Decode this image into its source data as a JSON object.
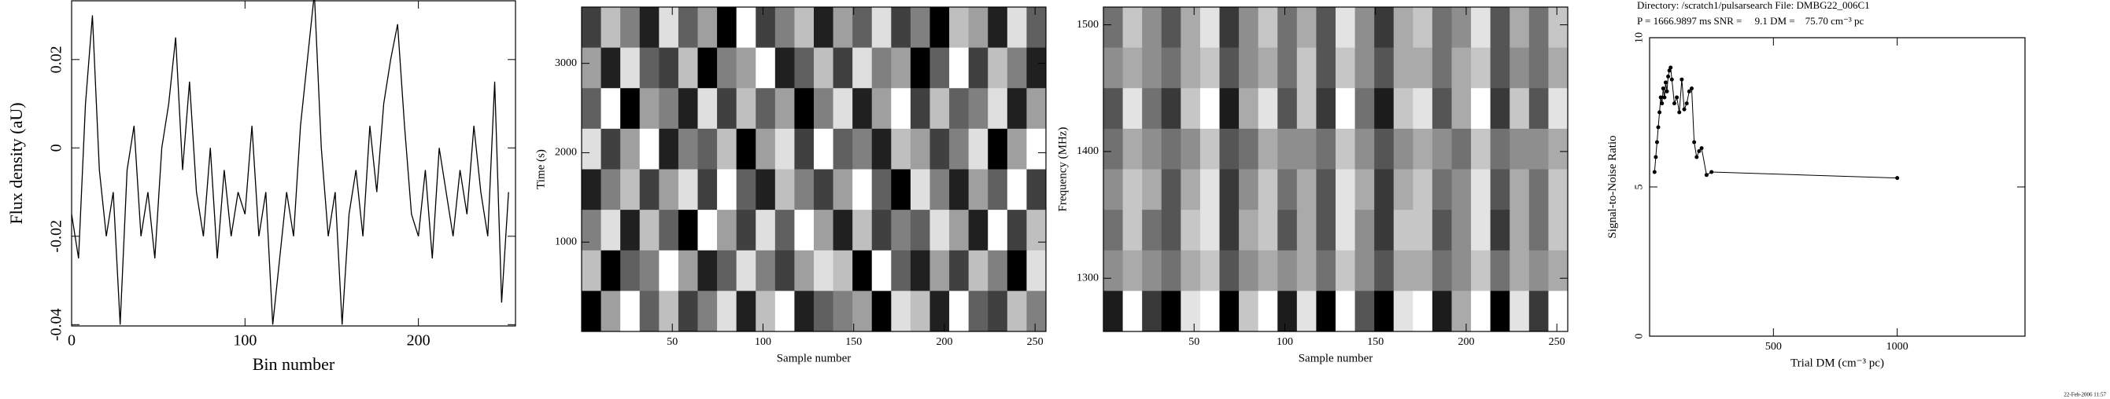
{
  "chart_data": [
    {
      "type": "line",
      "xlabel": "Bin number",
      "ylabel": "Flux density (aU)",
      "color": "#000000",
      "xlim": [
        0,
        256
      ],
      "xticks": [
        0,
        100,
        200
      ],
      "ylim": [
        -0.0403,
        0.0333
      ],
      "yticks": [
        -0.04,
        -0.02,
        0,
        0.02
      ],
      "rotate_yticks": true,
      "x": [
        0,
        4,
        8,
        12,
        16,
        20,
        24,
        28,
        32,
        36,
        40,
        44,
        48,
        52,
        56,
        60,
        64,
        68,
        72,
        76,
        80,
        84,
        88,
        92,
        96,
        100,
        104,
        108,
        112,
        116,
        120,
        124,
        128,
        132,
        136,
        140,
        144,
        148,
        152,
        156,
        160,
        164,
        168,
        172,
        176,
        180,
        184,
        188,
        192,
        196,
        200,
        204,
        208,
        212,
        216,
        220,
        224,
        228,
        232,
        236,
        240,
        244,
        248,
        252
      ],
      "values": [
        -0.015,
        -0.025,
        0.01,
        0.03,
        -0.005,
        -0.02,
        -0.01,
        -0.04,
        -0.005,
        0.005,
        -0.02,
        -0.01,
        -0.025,
        0.0,
        0.01,
        0.025,
        -0.005,
        0.015,
        -0.01,
        -0.02,
        0.0,
        -0.025,
        -0.005,
        -0.02,
        -0.01,
        -0.015,
        0.005,
        -0.02,
        -0.01,
        -0.04,
        -0.025,
        -0.01,
        -0.02,
        0.005,
        0.02,
        0.035,
        0.0,
        -0.02,
        -0.01,
        -0.04,
        -0.015,
        -0.005,
        -0.02,
        0.005,
        -0.01,
        0.01,
        0.02,
        0.028,
        0.005,
        -0.015,
        -0.02,
        -0.005,
        -0.025,
        0.0,
        -0.01,
        -0.02,
        -0.005,
        -0.015,
        0.005,
        -0.01,
        -0.02,
        0.015,
        -0.035,
        -0.01
      ]
    },
    {
      "type": "heatmap",
      "xlabel": "Sample number",
      "ylabel": "Time (s)",
      "xlim": [
        0,
        256
      ],
      "xticks": [
        50,
        100,
        150,
        200,
        250
      ],
      "ylim": [
        0,
        3630
      ],
      "yticks": [
        1000,
        2000,
        3000
      ],
      "z": [
        [
          3,
          7,
          5,
          2,
          8,
          4,
          6,
          1,
          9,
          3,
          5,
          7,
          2,
          6,
          4,
          8,
          3,
          5,
          1,
          7,
          6,
          2,
          8,
          4
        ],
        [
          6,
          2,
          8,
          4,
          3,
          7,
          1,
          5,
          6,
          9,
          2,
          4,
          7,
          3,
          8,
          5,
          6,
          1,
          4,
          9,
          3,
          7,
          5,
          2
        ],
        [
          4,
          9,
          1,
          6,
          5,
          2,
          8,
          3,
          7,
          4,
          6,
          1,
          5,
          8,
          2,
          6,
          9,
          3,
          7,
          4,
          5,
          8,
          2,
          6
        ],
        [
          8,
          3,
          6,
          9,
          2,
          5,
          4,
          7,
          1,
          6,
          8,
          3,
          9,
          4,
          5,
          2,
          7,
          6,
          3,
          5,
          8,
          1,
          6,
          9
        ],
        [
          2,
          5,
          7,
          3,
          6,
          8,
          3,
          9,
          4,
          2,
          7,
          5,
          3,
          6,
          9,
          4,
          1,
          8,
          5,
          2,
          6,
          4,
          9,
          3
        ],
        [
          5,
          8,
          2,
          7,
          4,
          1,
          9,
          6,
          3,
          8,
          4,
          9,
          6,
          2,
          7,
          3,
          5,
          4,
          8,
          6,
          2,
          9,
          3,
          7
        ],
        [
          7,
          1,
          4,
          5,
          9,
          6,
          2,
          4,
          8,
          5,
          3,
          6,
          8,
          7,
          1,
          9,
          4,
          2,
          6,
          3,
          7,
          5,
          1,
          8
        ],
        [
          1,
          6,
          9,
          4,
          7,
          3,
          5,
          8,
          2,
          7,
          9,
          2,
          4,
          5,
          6,
          1,
          8,
          7,
          2,
          9,
          4,
          3,
          7,
          5
        ]
      ]
    },
    {
      "type": "heatmap",
      "xlabel": "Sample number",
      "ylabel": "Frequency (MHz)",
      "xlim": [
        0,
        256
      ],
      "xticks": [
        50,
        100,
        150,
        200,
        250
      ],
      "ylim": [
        1258,
        1514
      ],
      "yticks": [
        1300,
        1400,
        1500
      ],
      "z": [
        [
          4,
          7,
          5,
          3,
          6,
          8,
          2,
          5,
          7,
          4,
          6,
          3,
          8,
          5,
          2,
          6,
          7,
          4,
          5,
          8,
          3,
          6,
          4,
          7
        ],
        [
          5,
          6,
          5,
          4,
          6,
          7,
          3,
          5,
          6,
          4,
          7,
          3,
          7,
          5,
          3,
          6,
          6,
          4,
          6,
          7,
          3,
          5,
          4,
          6
        ],
        [
          3,
          8,
          4,
          2,
          7,
          9,
          1,
          6,
          8,
          3,
          7,
          2,
          9,
          4,
          1,
          7,
          8,
          3,
          6,
          9,
          2,
          7,
          3,
          8
        ],
        [
          4,
          6,
          5,
          4,
          5,
          7,
          3,
          4,
          6,
          5,
          5,
          4,
          7,
          5,
          3,
          5,
          6,
          5,
          4,
          7,
          4,
          5,
          5,
          6
        ],
        [
          5,
          7,
          6,
          3,
          6,
          8,
          2,
          5,
          7,
          4,
          6,
          3,
          8,
          6,
          2,
          6,
          7,
          4,
          5,
          8,
          3,
          6,
          4,
          7
        ],
        [
          4,
          7,
          4,
          3,
          7,
          8,
          2,
          6,
          7,
          3,
          6,
          3,
          8,
          5,
          2,
          7,
          7,
          3,
          5,
          8,
          2,
          6,
          4,
          7
        ],
        [
          5,
          6,
          5,
          4,
          6,
          7,
          3,
          5,
          6,
          5,
          6,
          4,
          7,
          5,
          3,
          6,
          6,
          4,
          5,
          7,
          4,
          6,
          5,
          6
        ],
        [
          1,
          9,
          2,
          0,
          8,
          9,
          0,
          7,
          9,
          1,
          8,
          0,
          9,
          3,
          0,
          8,
          9,
          1,
          6,
          9,
          0,
          8,
          2,
          9
        ]
      ]
    },
    {
      "type": "scatter",
      "title": "Directory: /scratch1/pulsarsearch File: DMBG22_006C1",
      "subtitle": "P = 1666.9897 ms SNR =     9.1 DM =    75.70 cm⁻³ pc",
      "xlabel": "Trial DM (cm⁻³ pc)",
      "ylabel": "Signal-to-Noise Ratio",
      "color": "#000000",
      "xlim": [
        0,
        1516
      ],
      "xticks": [
        500,
        1000
      ],
      "ylim": [
        0,
        10
      ],
      "yticks": [
        0,
        5,
        10
      ],
      "rotate_yticks": true,
      "x": [
        20,
        25,
        30,
        35,
        40,
        45,
        50,
        55,
        60,
        65,
        70,
        75,
        80,
        85,
        90,
        100,
        110,
        120,
        130,
        140,
        150,
        160,
        170,
        180,
        190,
        200,
        210,
        230,
        250,
        1000
      ],
      "values": [
        5.5,
        6.0,
        6.5,
        7.0,
        7.5,
        8.0,
        7.8,
        8.3,
        8.0,
        8.5,
        8.2,
        8.7,
        8.9,
        9.0,
        8.6,
        7.8,
        8.0,
        7.5,
        8.6,
        7.6,
        7.8,
        8.2,
        8.3,
        6.5,
        6.0,
        6.2,
        6.3,
        5.4,
        5.5,
        5.3
      ]
    }
  ],
  "timestamp": "22-Feb-2006 11:57"
}
